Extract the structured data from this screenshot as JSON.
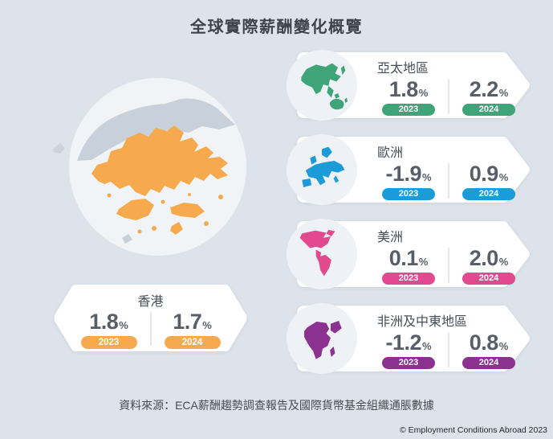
{
  "title": "全球實際薪酬變化概覽",
  "unit": "%",
  "hong_kong": {
    "name": "香港",
    "color": "#F7AA4D",
    "unit": "%",
    "values": [
      {
        "year": "2023",
        "value": "1.8"
      },
      {
        "year": "2024",
        "value": "1.7"
      }
    ]
  },
  "regions": [
    {
      "name": "亞太地區",
      "color": "#3FA478",
      "unit": "%",
      "values": [
        {
          "year": "2023",
          "value": "1.8"
        },
        {
          "year": "2024",
          "value": "2.2"
        }
      ]
    },
    {
      "name": "歐洲",
      "color": "#1B9CD9",
      "unit": "%",
      "values": [
        {
          "year": "2023",
          "value": "-1.9"
        },
        {
          "year": "2024",
          "value": "0.9"
        }
      ]
    },
    {
      "name": "美洲",
      "color": "#E2498F",
      "unit": "%",
      "values": [
        {
          "year": "2023",
          "value": "0.1"
        },
        {
          "year": "2024",
          "value": "2.0"
        }
      ]
    },
    {
      "name": "非洲及中東地區",
      "color": "#8B3190",
      "unit": "%",
      "values": [
        {
          "year": "2023",
          "value": "-1.2"
        },
        {
          "year": "2024",
          "value": "0.8"
        }
      ]
    }
  ],
  "source": "資料來源：ECA薪酬趨勢調查報告及國際貨幣基金組織通脹數據",
  "copyright": "© Employment Conditions Abroad 2023",
  "icons": {
    "hong_kong_map": "hong-kong-territory-map",
    "world_map": "world-map-fragment",
    "region_maps": [
      "asia-pacific-map",
      "europe-map",
      "americas-map",
      "africa-middle-east-map"
    ]
  },
  "chart_data": {
    "type": "table",
    "title": "全球實際薪酬變化概覽",
    "categories": [
      "2023",
      "2024"
    ],
    "unit": "%",
    "series": [
      {
        "name": "香港",
        "values": [
          1.8,
          1.7
        ]
      },
      {
        "name": "亞太地區",
        "values": [
          1.8,
          2.2
        ]
      },
      {
        "name": "歐洲",
        "values": [
          -1.9,
          0.9
        ]
      },
      {
        "name": "美洲",
        "values": [
          0.1,
          2.0
        ]
      },
      {
        "name": "非洲及中東地區",
        "values": [
          -1.2,
          0.8
        ]
      }
    ]
  }
}
